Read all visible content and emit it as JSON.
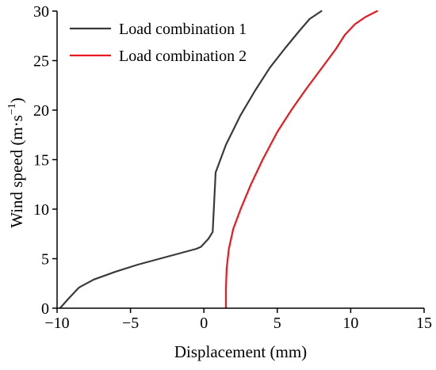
{
  "chart_data": {
    "type": "line",
    "xlabel": "Displacement (mm)",
    "ylabel": {
      "main": "Wind speed (m·s",
      "sup": "−1",
      "close": ")"
    },
    "xlim": [
      -10,
      15
    ],
    "ylim": [
      0,
      30
    ],
    "xticks": [
      -10,
      -5,
      0,
      5,
      10,
      15
    ],
    "yticks": [
      0,
      5,
      10,
      15,
      20,
      25,
      30
    ],
    "xtick_labels": [
      "−10",
      "−5",
      "0",
      "5",
      "10",
      "15"
    ],
    "ytick_labels": [
      "0",
      "5",
      "10",
      "15",
      "20",
      "25",
      "30"
    ],
    "grid": false,
    "legend_position": "top-left",
    "series": [
      {
        "name": "Load combination 1",
        "color": "#3a3a3a",
        "x": [
          -9.8,
          -9.2,
          -8.5,
          -7.5,
          -6.0,
          -4.5,
          -3.0,
          -1.5,
          -0.5,
          -0.2,
          0.3,
          0.6,
          0.8,
          1.5,
          2.5,
          3.5,
          4.5,
          5.5,
          6.5,
          7.2,
          8.0
        ],
        "y": [
          0,
          1.0,
          2.1,
          2.9,
          3.7,
          4.4,
          5.0,
          5.6,
          6.0,
          6.2,
          7.0,
          7.7,
          13.7,
          16.5,
          19.5,
          22.0,
          24.3,
          26.2,
          28.0,
          29.2,
          30.0
        ]
      },
      {
        "name": "Load combination 2",
        "color": "#e8191f",
        "x": [
          1.5,
          1.5,
          1.55,
          1.7,
          2.0,
          2.5,
          3.2,
          4.0,
          5.0,
          6.0,
          7.0,
          8.0,
          9.0,
          9.6,
          10.3,
          11.0,
          11.8
        ],
        "y": [
          0,
          2.0,
          4.0,
          6.0,
          8.0,
          10.0,
          12.5,
          15.0,
          17.8,
          20.1,
          22.2,
          24.2,
          26.2,
          27.6,
          28.7,
          29.4,
          30.0
        ]
      }
    ]
  }
}
